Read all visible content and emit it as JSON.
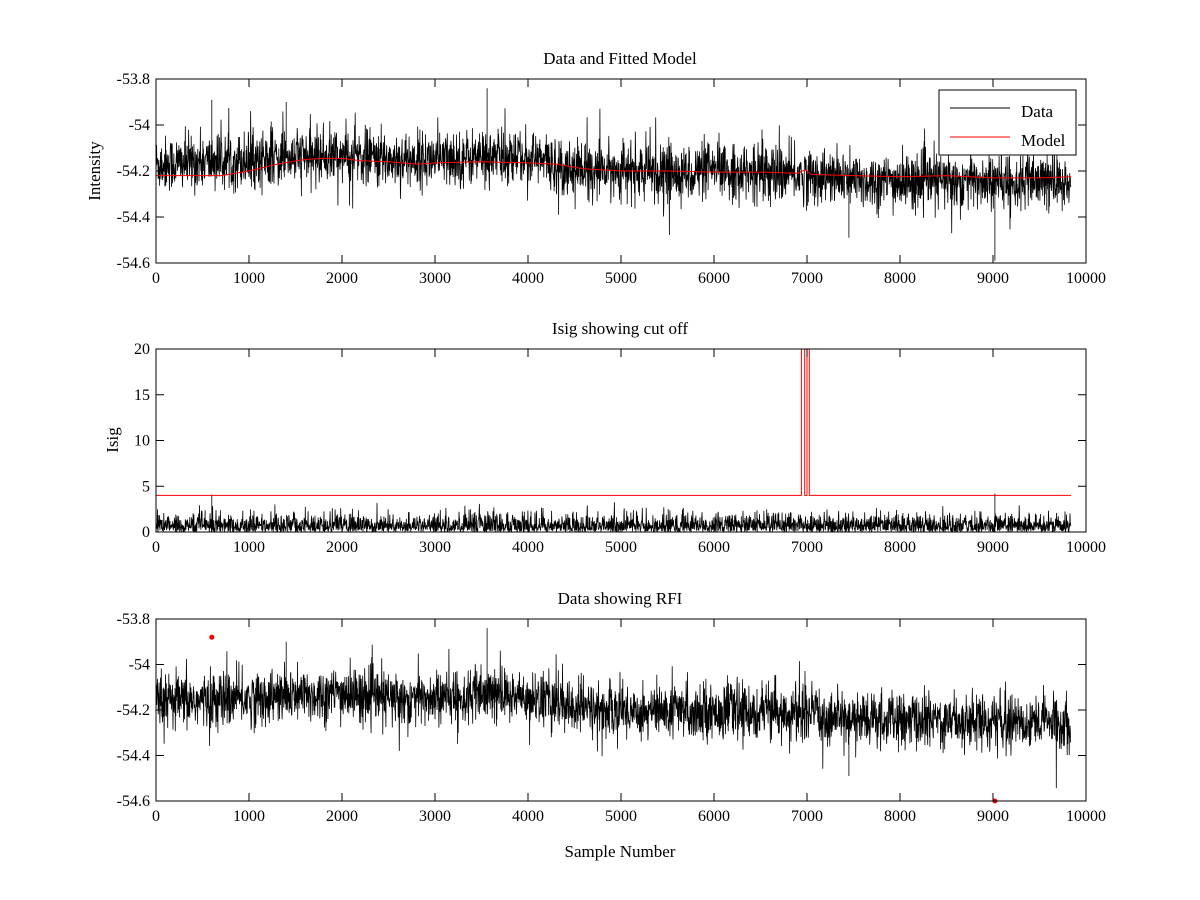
{
  "colors": {
    "data": "#000000",
    "model": "#ff0000",
    "background": "#ffffff"
  },
  "chart_data": [
    {
      "type": "line",
      "title": "Data and Fitted Model",
      "xlabel": "",
      "ylabel": "Intensity",
      "xlim": [
        0,
        10000
      ],
      "ylim": [
        -54.6,
        -53.8
      ],
      "xticks": [
        0,
        1000,
        2000,
        3000,
        4000,
        5000,
        6000,
        7000,
        8000,
        9000,
        10000
      ],
      "xtick_labels": [
        "0",
        "1000",
        "2000",
        "3000",
        "4000",
        "5000",
        "6000",
        "7000",
        "8000",
        "9000",
        "10000"
      ],
      "yticks": [
        -54.6,
        -54.4,
        -54.2,
        -54.0,
        -53.8
      ],
      "ytick_labels": [
        "-54.6",
        "-54.4",
        "-54.2",
        "-54",
        "-53.8"
      ],
      "legend": {
        "position": "top-right",
        "entries": [
          "Data",
          "Model"
        ]
      },
      "series": [
        {
          "name": "Data",
          "kind": "noise-band",
          "color": "#000000",
          "n_samples": 9840,
          "x": [
            0,
            500,
            1000,
            1500,
            2000,
            2500,
            3000,
            3500,
            4000,
            4500,
            5000,
            5500,
            6000,
            6500,
            7000,
            7500,
            8000,
            8500,
            9000,
            9500,
            9840
          ],
          "center": [
            -54.17,
            -54.16,
            -54.15,
            -54.14,
            -54.13,
            -54.15,
            -54.15,
            -54.14,
            -54.14,
            -54.19,
            -54.2,
            -54.21,
            -54.2,
            -54.21,
            -54.22,
            -54.24,
            -54.25,
            -54.24,
            -54.25,
            -54.25,
            -54.26
          ],
          "spread": 0.06,
          "peaks": [
            [
              600,
              -53.89
            ],
            [
              1400,
              -53.9
            ],
            [
              3560,
              -53.84
            ],
            [
              9020,
              -54.59
            ],
            [
              7450,
              -54.49
            ]
          ]
        },
        {
          "name": "Model",
          "color": "#ff0000",
          "x": [
            0,
            300,
            700,
            1000,
            1300,
            1600,
            1800,
            2000,
            2200,
            2500,
            2800,
            3000,
            3500,
            4000,
            4300,
            4600,
            5000,
            5500,
            6000,
            6500,
            6900,
            6980,
            7050,
            7500,
            8000,
            8500,
            9000,
            9500,
            9840
          ],
          "y": [
            -54.22,
            -54.22,
            -54.22,
            -54.2,
            -54.17,
            -54.15,
            -54.145,
            -54.145,
            -54.155,
            -54.16,
            -54.17,
            -54.165,
            -54.16,
            -54.165,
            -54.17,
            -54.19,
            -54.2,
            -54.2,
            -54.205,
            -54.205,
            -54.21,
            -54.195,
            -54.215,
            -54.22,
            -54.225,
            -54.22,
            -54.23,
            -54.23,
            -54.225
          ]
        }
      ]
    },
    {
      "type": "line",
      "title": "Isig showing cut off",
      "xlabel": "",
      "ylabel": "Isig",
      "xlim": [
        0,
        10000
      ],
      "ylim": [
        0,
        20
      ],
      "xticks": [
        0,
        1000,
        2000,
        3000,
        4000,
        5000,
        6000,
        7000,
        8000,
        9000,
        10000
      ],
      "xtick_labels": [
        "0",
        "1000",
        "2000",
        "3000",
        "4000",
        "5000",
        "6000",
        "7000",
        "8000",
        "9000",
        "10000"
      ],
      "yticks": [
        0,
        5,
        10,
        15,
        20
      ],
      "ytick_labels": [
        "0",
        "5",
        "10",
        "15",
        "20"
      ],
      "series": [
        {
          "kind": "noise-abs",
          "color": "#000000",
          "n_samples": 9840,
          "typical_max": 2.5,
          "peaks": [
            [
              600,
              4.1
            ],
            [
              9020,
              4.2
            ]
          ]
        },
        {
          "color": "#ff0000",
          "x": [
            0,
            6940,
            6940,
            6975,
            6975,
            7000,
            7000,
            7025,
            7025,
            9840
          ],
          "y": [
            4,
            4,
            20,
            20,
            4,
            4,
            20,
            20,
            4,
            4
          ]
        }
      ]
    },
    {
      "type": "line",
      "title": "Data showing RFI",
      "xlabel": "Sample Number",
      "ylabel": "",
      "xlim": [
        0,
        10000
      ],
      "ylim": [
        -54.6,
        -53.8
      ],
      "xticks": [
        0,
        1000,
        2000,
        3000,
        4000,
        5000,
        6000,
        7000,
        8000,
        9000,
        10000
      ],
      "xtick_labels": [
        "0",
        "1000",
        "2000",
        "3000",
        "4000",
        "5000",
        "6000",
        "7000",
        "8000",
        "9000",
        "10000"
      ],
      "yticks": [
        -54.6,
        -54.4,
        -54.2,
        -54.0,
        -53.8
      ],
      "ytick_labels": [
        "-54.6",
        "-54.4",
        "-54.2",
        "-54",
        "-53.8"
      ],
      "series": [
        {
          "kind": "noise-band",
          "color": "#000000",
          "n_samples": 9840,
          "x": [
            0,
            500,
            1000,
            1500,
            2000,
            2500,
            3000,
            3500,
            4000,
            4500,
            5000,
            5500,
            6000,
            6500,
            7000,
            7500,
            8000,
            8500,
            9000,
            9500,
            9840
          ],
          "center": [
            -54.17,
            -54.16,
            -54.15,
            -54.14,
            -54.13,
            -54.15,
            -54.15,
            -54.14,
            -54.14,
            -54.19,
            -54.2,
            -54.21,
            -54.2,
            -54.21,
            -54.22,
            -54.24,
            -54.25,
            -54.24,
            -54.25,
            -54.25,
            -54.26
          ],
          "spread": 0.06,
          "peaks": [
            [
              1400,
              -53.9
            ],
            [
              3560,
              -53.84
            ],
            [
              7450,
              -54.49
            ]
          ]
        },
        {
          "kind": "markers",
          "color": "#ff0000",
          "x": [
            600,
            9020
          ],
          "y": [
            -53.88,
            -54.6
          ]
        }
      ]
    }
  ]
}
